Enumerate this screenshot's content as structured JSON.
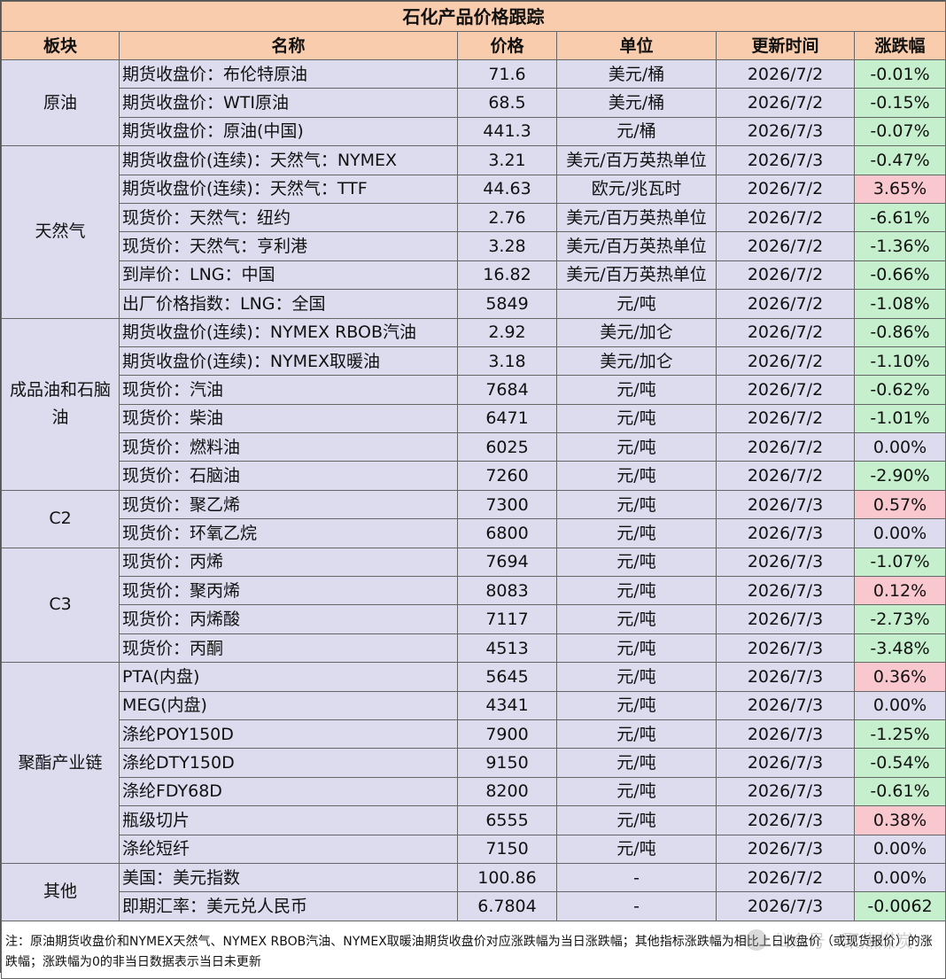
{
  "title": "石化产品价格跟踪",
  "headers": {
    "sector": "板块",
    "name": "名称",
    "price": "价格",
    "unit": "单位",
    "date": "更新时间",
    "change": "涨跌幅"
  },
  "sectors": [
    {
      "label": "原油",
      "rows": [
        {
          "name": "期货收盘价：布伦特原油",
          "price": "71.6",
          "unit": "美元/桶",
          "date": "2026/7/2",
          "change": "-0.01%",
          "trend": "down"
        },
        {
          "name": "期货收盘价：WTI原油",
          "price": "68.5",
          "unit": "美元/桶",
          "date": "2026/7/2",
          "change": "-0.15%",
          "trend": "down"
        },
        {
          "name": "期货收盘价：原油(中国)",
          "price": "441.3",
          "unit": "元/桶",
          "date": "2026/7/3",
          "change": "-0.07%",
          "trend": "down"
        }
      ]
    },
    {
      "label": "天然气",
      "rows": [
        {
          "name": "期货收盘价(连续)：天然气：NYMEX",
          "price": "3.21",
          "unit": "美元/百万英热单位",
          "date": "2026/7/3",
          "change": "-0.47%",
          "trend": "down"
        },
        {
          "name": "期货收盘价(连续)：天然气：TTF",
          "price": "44.63",
          "unit": "欧元/兆瓦时",
          "date": "2026/7/2",
          "change": "3.65%",
          "trend": "up"
        },
        {
          "name": "现货价：天然气：纽约",
          "price": "2.76",
          "unit": "美元/百万英热单位",
          "date": "2026/7/2",
          "change": "-6.61%",
          "trend": "down"
        },
        {
          "name": "现货价：天然气：亨利港",
          "price": "3.28",
          "unit": "美元/百万英热单位",
          "date": "2026/7/2",
          "change": "-1.36%",
          "trend": "down"
        },
        {
          "name": "到岸价：LNG：中国",
          "price": "16.82",
          "unit": "美元/百万英热单位",
          "date": "2026/7/2",
          "change": "-0.66%",
          "trend": "down"
        },
        {
          "name": "出厂价格指数：LNG：全国",
          "price": "5849",
          "unit": "元/吨",
          "date": "2026/7/2",
          "change": "-1.08%",
          "trend": "down"
        }
      ]
    },
    {
      "label": "成品油和石脑油",
      "rows": [
        {
          "name": "期货收盘价(连续)：NYMEX RBOB汽油",
          "price": "2.92",
          "unit": "美元/加仑",
          "date": "2026/7/2",
          "change": "-0.86%",
          "trend": "down"
        },
        {
          "name": "期货收盘价(连续)：NYMEX取暖油",
          "price": "3.18",
          "unit": "美元/加仑",
          "date": "2026/7/2",
          "change": "-1.10%",
          "trend": "down"
        },
        {
          "name": "现货价：汽油",
          "price": "7684",
          "unit": "元/吨",
          "date": "2026/7/2",
          "change": "-0.62%",
          "trend": "down"
        },
        {
          "name": "现货价：柴油",
          "price": "6471",
          "unit": "元/吨",
          "date": "2026/7/2",
          "change": "-1.01%",
          "trend": "down"
        },
        {
          "name": "现货价：燃料油",
          "price": "6025",
          "unit": "元/吨",
          "date": "2026/7/2",
          "change": "0.00%",
          "trend": "flat"
        },
        {
          "name": "现货价：石脑油",
          "price": "7260",
          "unit": "元/吨",
          "date": "2026/7/2",
          "change": "-2.90%",
          "trend": "down"
        }
      ]
    },
    {
      "label": "C2",
      "rows": [
        {
          "name": "现货价：聚乙烯",
          "price": "7300",
          "unit": "元/吨",
          "date": "2026/7/3",
          "change": "0.57%",
          "trend": "up"
        },
        {
          "name": "现货价：环氧乙烷",
          "price": "6800",
          "unit": "元/吨",
          "date": "2026/7/3",
          "change": "0.00%",
          "trend": "flat"
        }
      ]
    },
    {
      "label": "C3",
      "rows": [
        {
          "name": "现货价：丙烯",
          "price": "7694",
          "unit": "元/吨",
          "date": "2026/7/3",
          "change": "-1.07%",
          "trend": "down"
        },
        {
          "name": "现货价：聚丙烯",
          "price": "8083",
          "unit": "元/吨",
          "date": "2026/7/3",
          "change": "0.12%",
          "trend": "up"
        },
        {
          "name": "现货价：丙烯酸",
          "price": "7117",
          "unit": "元/吨",
          "date": "2026/7/3",
          "change": "-2.73%",
          "trend": "down"
        },
        {
          "name": "现货价：丙酮",
          "price": "4513",
          "unit": "元/吨",
          "date": "2026/7/3",
          "change": "-3.48%",
          "trend": "down"
        }
      ]
    },
    {
      "label": "聚酯产业链",
      "rows": [
        {
          "name": "PTA(内盘)",
          "price": "5645",
          "unit": "元/吨",
          "date": "2026/7/3",
          "change": "0.36%",
          "trend": "up"
        },
        {
          "name": "MEG(内盘)",
          "price": "4341",
          "unit": "元/吨",
          "date": "2026/7/3",
          "change": "0.00%",
          "trend": "flat"
        },
        {
          "name": "涤纶POY150D",
          "price": "7900",
          "unit": "元/吨",
          "date": "2026/7/3",
          "change": "-1.25%",
          "trend": "down"
        },
        {
          "name": "涤纶DTY150D",
          "price": "9150",
          "unit": "元/吨",
          "date": "2026/7/3",
          "change": "-0.54%",
          "trend": "down"
        },
        {
          "name": "涤纶FDY68D",
          "price": "8200",
          "unit": "元/吨",
          "date": "2026/7/3",
          "change": "-0.61%",
          "trend": "down"
        },
        {
          "name": "瓶级切片",
          "price": "6555",
          "unit": "元/吨",
          "date": "2026/7/3",
          "change": "0.38%",
          "trend": "up"
        },
        {
          "name": "涤纶短纤",
          "price": "7150",
          "unit": "元/吨",
          "date": "2026/7/3",
          "change": "0.00%",
          "trend": "flat"
        }
      ]
    },
    {
      "label": "其他",
      "rows": [
        {
          "name": "美国：美元指数",
          "price": "100.86",
          "unit": "-",
          "date": "2026/7/2",
          "change": "0.00%",
          "trend": "flat"
        },
        {
          "name": "即期汇率：美元兑人民币",
          "price": "6.7804",
          "unit": "-",
          "date": "2026/7/3",
          "change": "-0.0062",
          "trend": "down"
        }
      ]
    }
  ],
  "note": "注：原油期货收盘价和NYMEX天然气、NYMEX RBOB汽油、NYMEX取暖油期货收盘价对应涨跌幅为当日涨跌幅；其他指标涨跌幅为相比上日收盘价（或现货报价）的涨跌幅；涨跌幅为0的非当日数据表示当日未更新",
  "watermark": "公众号 · 聚焦煤炭",
  "colors": {
    "header": "#f8ccac",
    "cell": "#dcdcee",
    "down": "#c6efce",
    "up": "#f9c7ce"
  }
}
